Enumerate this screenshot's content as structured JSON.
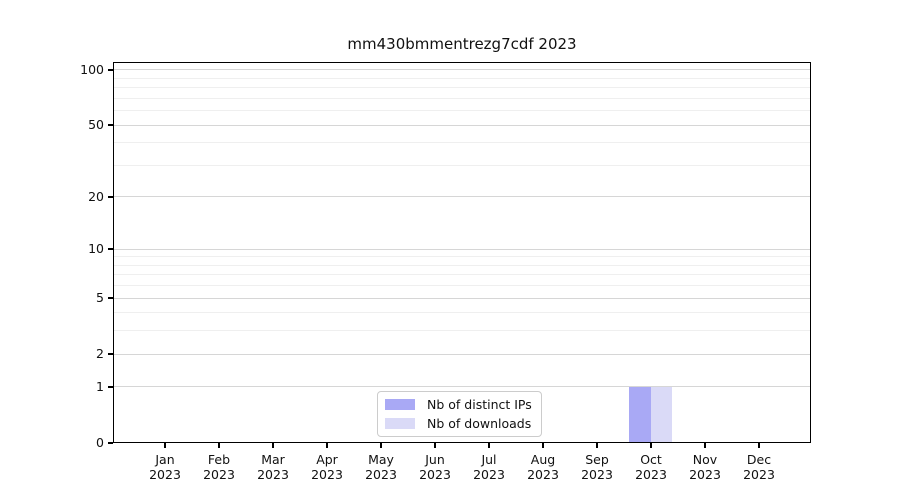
{
  "title": "mm430bmmentrezg7cdf 2023",
  "chart_data": {
    "type": "bar",
    "scale": "log1p",
    "title": "mm430bmmentrezg7cdf 2023",
    "months": [
      "Jan",
      "Feb",
      "Mar",
      "Apr",
      "May",
      "Jun",
      "Jul",
      "Aug",
      "Sep",
      "Oct",
      "Nov",
      "Dec"
    ],
    "year": "2023",
    "series": [
      {
        "name": "Nb of distinct IPs",
        "color": "#a9a9f5",
        "values": [
          0,
          0,
          0,
          0,
          0,
          0,
          0,
          0,
          0,
          1,
          0,
          0
        ]
      },
      {
        "name": "Nb of downloads",
        "color": "#dadaf7",
        "values": [
          0,
          0,
          0,
          0,
          0,
          0,
          0,
          0,
          0,
          1,
          0,
          0
        ]
      }
    ],
    "y_ticks": [
      100,
      50,
      20,
      10,
      5,
      2,
      1,
      0
    ],
    "y_minor_ticks": [
      3,
      4,
      6,
      7,
      8,
      9,
      30,
      40,
      60,
      70,
      80,
      90
    ],
    "ylim": [
      0,
      110.5
    ],
    "xlabel": "",
    "ylabel": "",
    "grid": "horizontal-major-and-minor",
    "legend_position": "bottom-center",
    "colors": {
      "grid_major": "#d6d6d6",
      "grid_minor": "#efefef",
      "axis": "#000000",
      "legend_border": "#cccccc",
      "background": "#ffffff"
    }
  }
}
